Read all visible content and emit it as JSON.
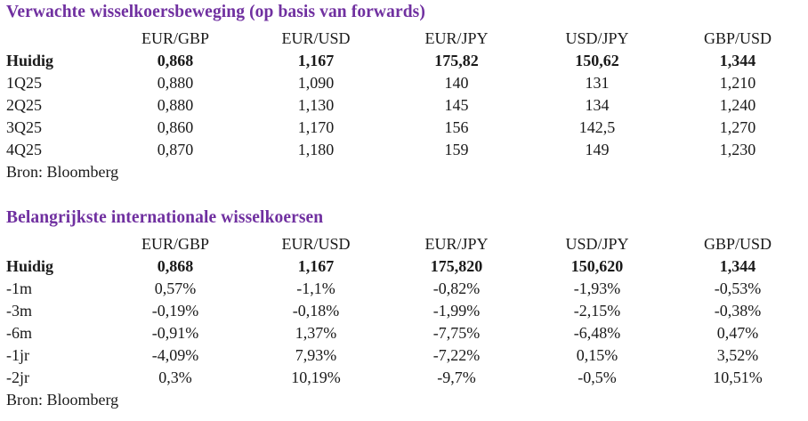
{
  "page": {
    "background": "#ffffff",
    "text_color": "#1a1a1a",
    "accent_color": "#7030A0"
  },
  "tables": [
    {
      "title": "Verwachte wisselkoersbeweging (op basis van forwards)",
      "columns": [
        "EUR/GBP",
        "EUR/USD",
        "EUR/JPY",
        "USD/JPY",
        "GBP/USD"
      ],
      "rows": [
        {
          "label": "Huidig",
          "values": [
            "0,868",
            "1,167",
            "175,82",
            "150,62",
            "1,344"
          ]
        },
        {
          "label": "1Q25",
          "values": [
            "0,880",
            "1,090",
            "140",
            "131",
            "1,210"
          ]
        },
        {
          "label": "2Q25",
          "values": [
            "0,880",
            "1,130",
            "145",
            "134",
            "1,240"
          ]
        },
        {
          "label": "3Q25",
          "values": [
            "0,860",
            "1,170",
            "156",
            "142,5",
            "1,270"
          ]
        },
        {
          "label": "4Q25",
          "values": [
            "0,870",
            "1,180",
            "159",
            "149",
            "1,230"
          ]
        }
      ],
      "source": "Bron: Bloomberg"
    },
    {
      "title": "Belangrijkste internationale wisselkoersen",
      "columns": [
        "EUR/GBP",
        "EUR/USD",
        "EUR/JPY",
        "USD/JPY",
        "GBP/USD"
      ],
      "rows": [
        {
          "label": "Huidig",
          "values": [
            "0,868",
            "1,167",
            "175,820",
            "150,620",
            "1,344"
          ]
        },
        {
          "label": "-1m",
          "values": [
            "0,57%",
            "-1,1%",
            "-0,82%",
            "-1,93%",
            "-0,53%"
          ]
        },
        {
          "label": "-3m",
          "values": [
            "-0,19%",
            "-0,18%",
            "-1,99%",
            "-2,15%",
            "-0,38%"
          ]
        },
        {
          "label": "-6m",
          "values": [
            "-0,91%",
            "1,37%",
            "-7,75%",
            "-6,48%",
            "0,47%"
          ]
        },
        {
          "label": "-1jr",
          "values": [
            "-4,09%",
            "7,93%",
            "-7,22%",
            "0,15%",
            "3,52%"
          ]
        },
        {
          "label": "-2jr",
          "values": [
            "0,3%",
            "10,19%",
            "-9,7%",
            "-0,5%",
            "10,51%"
          ]
        }
      ],
      "source": "Bron: Bloomberg"
    }
  ]
}
